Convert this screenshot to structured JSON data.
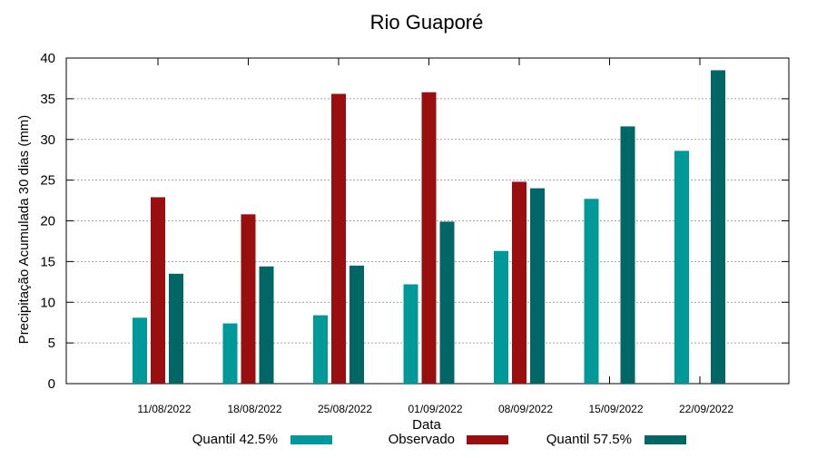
{
  "chart_data": {
    "type": "bar",
    "title": "Rio Guaporé",
    "xlabel": "Data",
    "ylabel": "Precipitação Acumulada 30 dias (mm)",
    "ylim": [
      0,
      40
    ],
    "yticks": [
      0,
      5,
      10,
      15,
      20,
      25,
      30,
      35,
      40
    ],
    "grid": true,
    "legend_position": "bottom",
    "categories": [
      "11/08/2022",
      "18/08/2022",
      "25/08/2022",
      "01/09/2022",
      "08/09/2022",
      "15/09/2022",
      "22/09/2022"
    ],
    "series": [
      {
        "name": "Quantil 42.5%",
        "color": "#009999",
        "values": [
          8.1,
          7.4,
          8.4,
          12.2,
          16.3,
          22.7,
          28.6
        ]
      },
      {
        "name": "Observado",
        "color": "#990f0f",
        "values": [
          22.9,
          20.8,
          35.6,
          35.8,
          24.8,
          null,
          null
        ]
      },
      {
        "name": "Quantil 57.5%",
        "color": "#006666",
        "values": [
          13.5,
          14.4,
          14.5,
          19.9,
          24.0,
          31.6,
          38.5
        ]
      }
    ]
  }
}
